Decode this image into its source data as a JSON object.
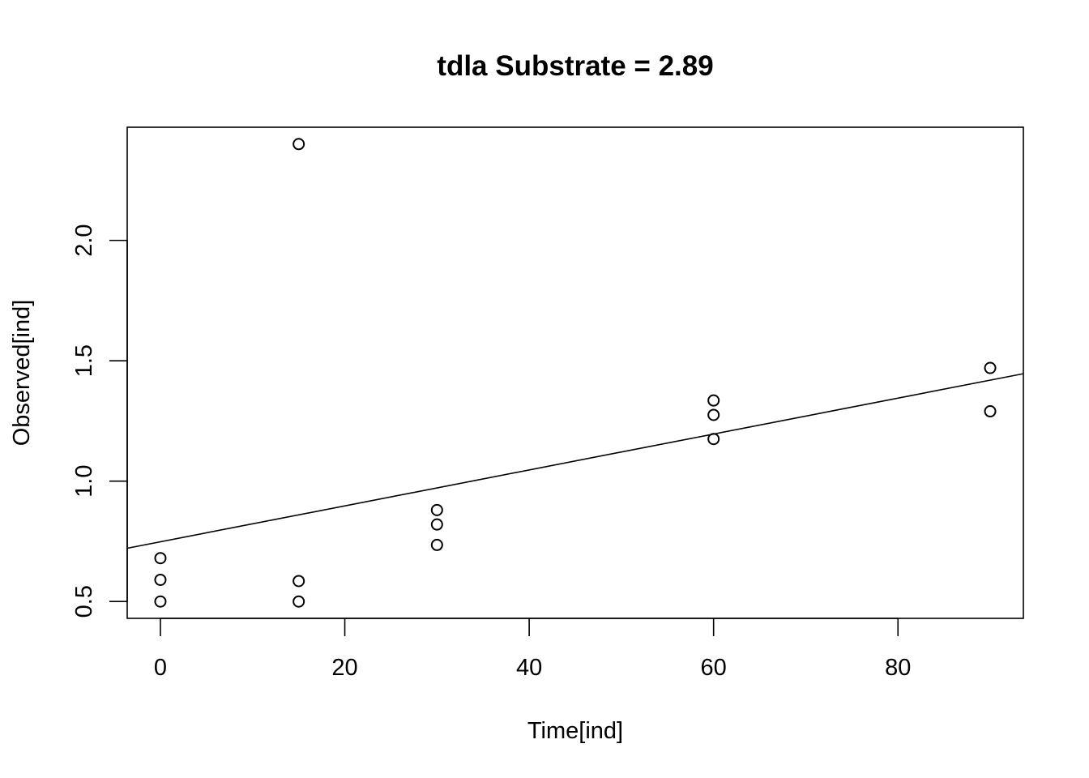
{
  "chart_data": {
    "type": "scatter",
    "title": "tdla Substrate = 2.89",
    "xlabel": "Time[ind]",
    "ylabel": "Observed[ind]",
    "xlim": [
      -3.6,
      93.6
    ],
    "ylim": [
      0.43,
      2.47
    ],
    "x_ticks": [
      0,
      20,
      40,
      60,
      80
    ],
    "y_ticks": [
      0.5,
      1.0,
      1.5,
      2.0
    ],
    "x_tick_labels": [
      "0",
      "20",
      "40",
      "60",
      "80"
    ],
    "y_tick_labels": [
      "0.5",
      "1.0",
      "1.5",
      "2.0"
    ],
    "points": [
      {
        "x": 0,
        "y": 0.68
      },
      {
        "x": 0,
        "y": 0.59
      },
      {
        "x": 0,
        "y": 0.5
      },
      {
        "x": 15,
        "y": 2.4
      },
      {
        "x": 15,
        "y": 0.585
      },
      {
        "x": 15,
        "y": 0.5
      },
      {
        "x": 30,
        "y": 0.88
      },
      {
        "x": 30,
        "y": 0.82
      },
      {
        "x": 30,
        "y": 0.735
      },
      {
        "x": 60,
        "y": 1.335
      },
      {
        "x": 60,
        "y": 1.275
      },
      {
        "x": 60,
        "y": 1.175
      },
      {
        "x": 90,
        "y": 1.47
      },
      {
        "x": 90,
        "y": 1.29
      }
    ],
    "fit_line": {
      "intercept": 0.748,
      "slope": 0.00746
    },
    "grid": false,
    "legend": "none"
  }
}
